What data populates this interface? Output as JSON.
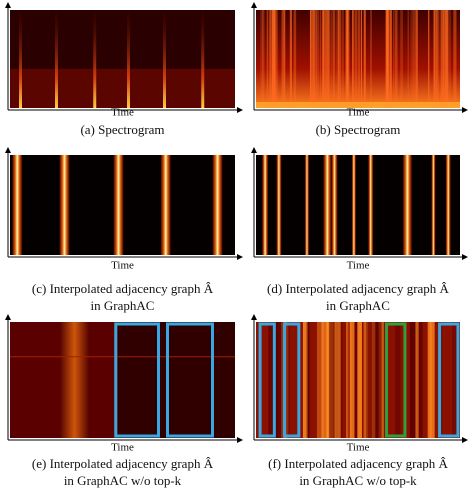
{
  "panels": [
    {
      "axis_label": "Time",
      "caption": [
        "(a) Spectrogram"
      ]
    },
    {
      "axis_label": "Time",
      "caption": [
        "(b) Spectrogram"
      ]
    },
    {
      "axis_label": "Time",
      "caption": [
        "(c) Interpolated adjacency graph Â",
        "in GraphAC"
      ]
    },
    {
      "axis_label": "Time",
      "caption": [
        "(d) Interpolated adjacency graph Â",
        "in GraphAC"
      ]
    },
    {
      "axis_label": "Time",
      "caption": [
        "(e) Interpolated adjacency graph Â",
        "in GraphAC w/o top-k"
      ]
    },
    {
      "axis_label": "Time",
      "caption": [
        "(f) Interpolated adjacency graph Â",
        "in GraphAC w/o top-k"
      ]
    }
  ]
}
